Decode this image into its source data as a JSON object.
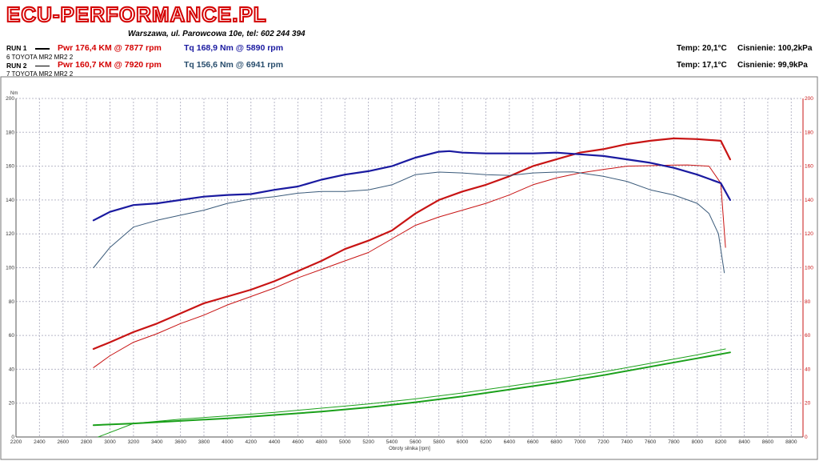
{
  "header": {
    "brand": "ECU-PERFORMANCE.PL",
    "address": "Warszawa, ul. Parowcowa 10e, tel: 602 244 394"
  },
  "runs": [
    {
      "label": "RUN 1",
      "vehicle": "6 TOYOTA MR2 MR2 2",
      "power": "Pwr  176,4 KM @ 7877 rpm",
      "torque": "Tq  168,9 Nm @ 5890 rpm",
      "temp": "Temp: 20,1°C",
      "pressure": "Cisnienie: 100,2kPa"
    },
    {
      "label": "RUN 2",
      "vehicle": "7 TOYOTA MR2 MR2 2",
      "power": "Pwr  160,7 KM @ 7920 rpm",
      "torque": "Tq  156,6 Nm @ 6941 rpm",
      "temp": "Temp: 17,1°C",
      "pressure": "Cisnienie: 99,9kPa"
    }
  ],
  "colors": {
    "power": "#c81414",
    "torque_run1": "#1a1aa0",
    "torque_run2": "#3a5a7a",
    "loss": "#1aa01a",
    "grid": "#b8b8c8",
    "right_axis": "#c81414"
  },
  "chart_data": {
    "type": "line",
    "xlabel": "Obroty silnika [rpm]",
    "ylabel_left": "Nm",
    "xlim": [
      2200,
      8900
    ],
    "ylim": [
      0,
      200
    ],
    "x_ticks": [
      2200,
      2400,
      2600,
      2800,
      3000,
      3200,
      3400,
      3600,
      3800,
      4000,
      4200,
      4400,
      4600,
      4800,
      5000,
      5200,
      5400,
      5600,
      5800,
      6000,
      6200,
      6400,
      6600,
      6800,
      7000,
      7200,
      7400,
      7600,
      7800,
      8000,
      8200,
      8400,
      8600,
      8800
    ],
    "y_ticks": [
      0,
      20,
      40,
      60,
      80,
      100,
      120,
      140,
      160,
      180,
      200
    ],
    "series": [
      {
        "name": "RUN 1 Pwr",
        "role": "power_run1",
        "x": [
          2860,
          3000,
          3200,
          3400,
          3600,
          3800,
          4000,
          4200,
          4400,
          4600,
          4800,
          5000,
          5200,
          5400,
          5600,
          5800,
          6000,
          6200,
          6400,
          6600,
          6800,
          7000,
          7200,
          7400,
          7600,
          7800,
          8000,
          8200,
          8280
        ],
        "y": [
          52,
          56,
          62,
          67,
          73,
          79,
          83,
          87,
          92,
          98,
          104,
          111,
          116,
          122,
          132,
          140,
          145,
          149,
          154,
          160,
          164,
          168,
          170,
          173,
          175,
          176.4,
          176,
          175,
          164
        ]
      },
      {
        "name": "RUN 2 Pwr",
        "role": "power_run2",
        "x": [
          2860,
          3000,
          3200,
          3400,
          3600,
          3800,
          4000,
          4200,
          4400,
          4600,
          4800,
          5000,
          5200,
          5400,
          5600,
          5800,
          6000,
          6200,
          6400,
          6600,
          6800,
          7000,
          7200,
          7400,
          7600,
          7800,
          7920,
          8100,
          8200,
          8240
        ],
        "y": [
          41,
          48,
          56,
          61,
          67,
          72,
          78,
          83,
          88,
          94,
          99,
          104,
          109,
          117,
          125,
          130,
          134,
          138,
          143,
          149,
          153,
          156,
          158,
          160,
          160.3,
          160.6,
          160.7,
          160,
          150,
          112
        ]
      },
      {
        "name": "RUN 1 Tq",
        "role": "torque_run1",
        "x": [
          2860,
          3000,
          3200,
          3400,
          3600,
          3800,
          4000,
          4200,
          4400,
          4600,
          4800,
          5000,
          5200,
          5400,
          5600,
          5800,
          5890,
          6000,
          6200,
          6400,
          6600,
          6800,
          7000,
          7200,
          7400,
          7600,
          7800,
          8000,
          8200,
          8280
        ],
        "y": [
          128,
          133,
          137,
          138,
          140,
          142,
          143,
          143.5,
          146,
          148,
          152,
          155,
          157,
          160,
          165,
          168.5,
          168.9,
          168,
          167.5,
          167.5,
          167.5,
          168,
          167,
          166,
          164,
          162,
          159,
          155,
          150,
          140
        ]
      },
      {
        "name": "RUN 2 Tq",
        "role": "torque_run2",
        "x": [
          2860,
          3000,
          3200,
          3400,
          3600,
          3800,
          4000,
          4200,
          4400,
          4600,
          4800,
          5000,
          5200,
          5400,
          5600,
          5800,
          6000,
          6200,
          6400,
          6600,
          6800,
          6941,
          7200,
          7400,
          7600,
          7800,
          8000,
          8100,
          8180,
          8230
        ],
        "y": [
          100,
          112,
          124,
          128,
          131,
          134,
          138,
          140.5,
          142,
          144,
          145,
          145,
          146,
          149,
          155,
          156.5,
          156,
          155,
          154.5,
          156,
          156.5,
          156.6,
          154,
          151,
          146,
          143,
          138,
          132,
          120,
          97
        ]
      },
      {
        "name": "RUN 1 loss",
        "role": "loss_run1",
        "x": [
          2860,
          3200,
          3600,
          4000,
          4400,
          4800,
          5200,
          5600,
          6000,
          6400,
          6800,
          7200,
          7600,
          8000,
          8280
        ],
        "y": [
          7,
          8,
          9.5,
          11,
          13,
          15,
          17.5,
          20.5,
          24,
          28,
          32,
          36.5,
          41.5,
          46.5,
          50
        ]
      },
      {
        "name": "RUN 2 loss",
        "role": "loss_run2",
        "x": [
          2900,
          3200,
          3600,
          4000,
          4400,
          4800,
          5200,
          5600,
          6000,
          6400,
          6800,
          7200,
          7600,
          8000,
          8240
        ],
        "y": [
          0,
          8,
          10.5,
          12.5,
          14.5,
          17,
          19.5,
          22.5,
          26,
          30,
          34,
          38.5,
          43.5,
          48.5,
          52
        ]
      }
    ]
  }
}
